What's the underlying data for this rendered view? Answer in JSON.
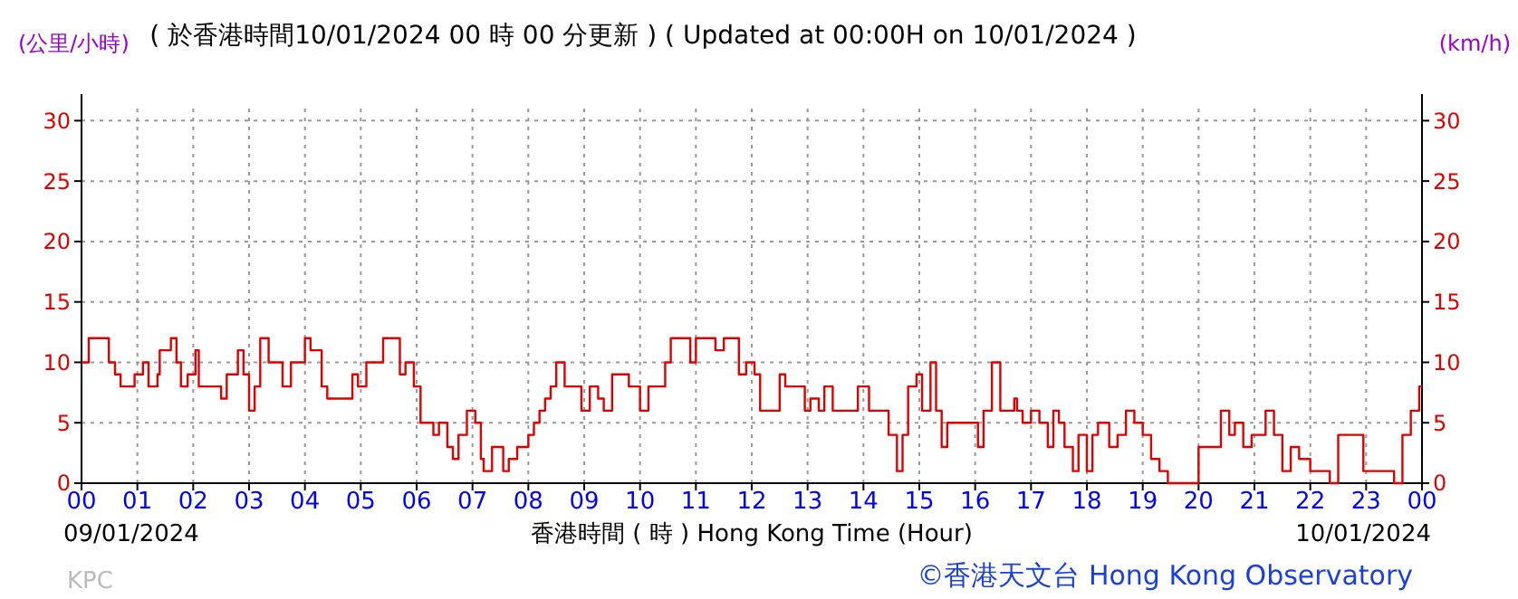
{
  "chart_data": {
    "type": "step",
    "title": "( 於香港時間10/01/2024 00 時 00 分更新 ) ( Updated at 00:00H on 10/01/2024 )",
    "xlabel": "香港時間 ( 時 ) Hong Kong Time (Hour)",
    "ylabel": "(公里/小時)",
    "y2label": "(km/h)",
    "annotations": [
      "09/01/2024",
      "10/01/2024",
      "KPC",
      "©香港天文台 Hong Kong Observatory"
    ],
    "x": [
      0,
      0.13,
      0.49,
      0.6,
      0.7,
      0.95,
      1.1,
      1.2,
      1.36,
      1.4,
      1.6,
      1.7,
      1.78,
      1.9,
      2.04,
      2.1,
      2.5,
      2.6,
      2.8,
      2.9,
      3.0,
      3.1,
      3.2,
      3.35,
      3.6,
      3.75,
      4.0,
      4.1,
      4.3,
      4.4,
      4.85,
      4.95,
      5.1,
      5.4,
      5.7,
      5.8,
      5.95,
      6.07,
      6.3,
      6.4,
      6.55,
      6.65,
      6.75,
      6.9,
      7.05,
      7.15,
      7.2,
      7.35,
      7.55,
      7.65,
      7.8,
      8.0,
      8.1,
      8.2,
      8.3,
      8.4,
      8.5,
      8.65,
      8.95,
      9.1,
      9.25,
      9.35,
      9.5,
      9.8,
      10.0,
      10.15,
      10.45,
      10.55,
      10.9,
      11.0,
      11.35,
      11.5,
      11.77,
      11.9,
      12.05,
      12.15,
      12.3,
      12.5,
      12.6,
      12.95,
      13.05,
      13.2,
      13.3,
      13.45,
      13.9,
      14.1,
      14.4,
      14.45,
      14.6,
      14.7,
      14.8,
      14.95,
      15.05,
      15.2,
      15.3,
      15.4,
      15.5,
      15.95,
      16.05,
      16.15,
      16.3,
      16.45,
      16.7,
      16.75,
      16.85,
      17.0,
      17.15,
      17.3,
      17.4,
      17.5,
      17.6,
      17.75,
      17.85,
      18.0,
      18.1,
      18.2,
      18.4,
      18.55,
      18.7,
      18.85,
      19.0,
      19.15,
      19.3,
      19.45,
      20.0,
      20.4,
      20.55,
      20.65,
      20.8,
      20.95,
      21.2,
      21.35,
      21.5,
      21.65,
      21.8,
      22.0,
      22.35,
      22.5,
      22.95,
      23.5,
      23.65,
      23.8,
      23.95
    ],
    "values": [
      10,
      12,
      10,
      9,
      8,
      9,
      10,
      8,
      9,
      11,
      12,
      10,
      8,
      9,
      11,
      8,
      7,
      9,
      11,
      9,
      6,
      8,
      12,
      10,
      8,
      10,
      12,
      11,
      8,
      7,
      9,
      8,
      10,
      12,
      9,
      10,
      8,
      5,
      4,
      5,
      3,
      2,
      4,
      6,
      5,
      2,
      1,
      3,
      1,
      2,
      3,
      4,
      5,
      6,
      7,
      8,
      10,
      8,
      6,
      8,
      7,
      6,
      9,
      8,
      6,
      8,
      10,
      12,
      10,
      12,
      11,
      12,
      9,
      10,
      9,
      6,
      6,
      9,
      8,
      6,
      7,
      6,
      8,
      6,
      8,
      6,
      6,
      4,
      1,
      4,
      8,
      9,
      6,
      10,
      6,
      3,
      5,
      5,
      3,
      6,
      10,
      6,
      7,
      6,
      5,
      6,
      5,
      3,
      6,
      5,
      3,
      1,
      4,
      1,
      4,
      5,
      3,
      4,
      6,
      5,
      4,
      2,
      1,
      0,
      3,
      6,
      4,
      5,
      3,
      4,
      6,
      4,
      1,
      3,
      2,
      1,
      0,
      4,
      1,
      0,
      4,
      6,
      8
    ],
    "color": "#e00000",
    "xlim": [
      0,
      24
    ],
    "xticks": [
      {
        "value": 0,
        "label": "00"
      },
      {
        "value": 1,
        "label": "01"
      },
      {
        "value": 2,
        "label": "02"
      },
      {
        "value": 3,
        "label": "03"
      },
      {
        "value": 4,
        "label": "04"
      },
      {
        "value": 5,
        "label": "05"
      },
      {
        "value": 6,
        "label": "06"
      },
      {
        "value": 7,
        "label": "07"
      },
      {
        "value": 8,
        "label": "08"
      },
      {
        "value": 9,
        "label": "09"
      },
      10,
      11,
      12,
      13,
      14,
      15,
      16,
      17,
      18,
      19,
      20,
      21,
      22,
      23,
      {
        "value": 24,
        "label": "00"
      }
    ],
    "ylim": [
      0,
      31
    ],
    "yticks": [
      0,
      5,
      10,
      15,
      20,
      25,
      30
    ],
    "y2lim": [
      0,
      31
    ],
    "y2ticks": [
      0,
      5,
      10,
      15,
      20,
      25,
      30
    ],
    "grid": true
  }
}
